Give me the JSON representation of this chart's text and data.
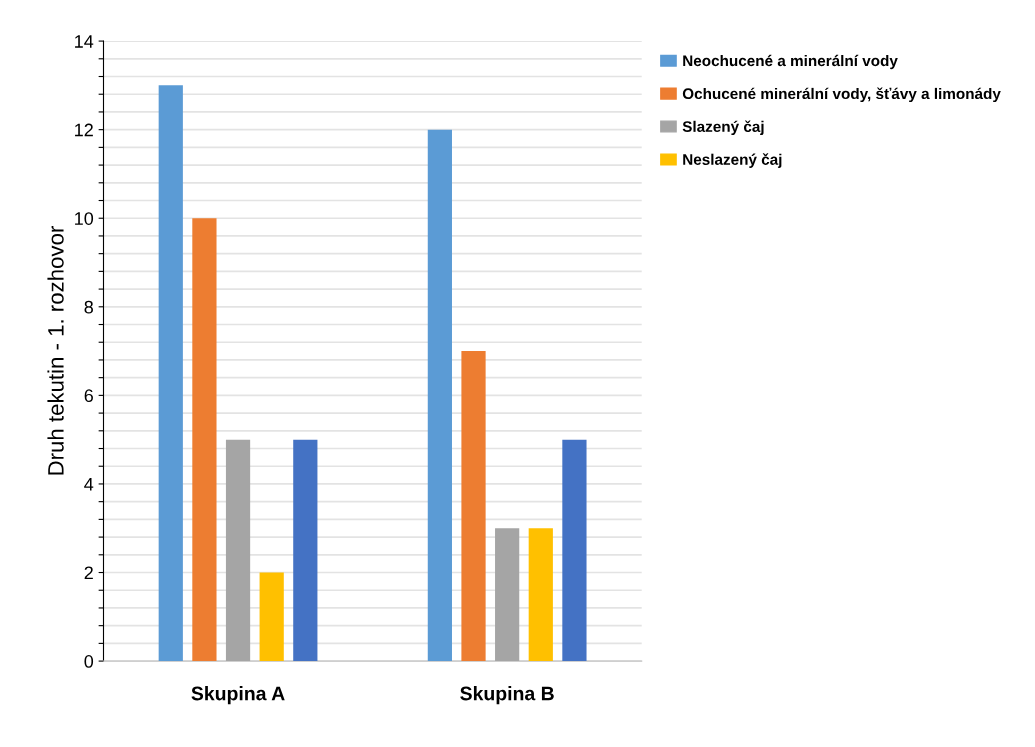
{
  "chart_data": {
    "type": "bar",
    "ylabel": "Druh tekutin - 1. rozhovor",
    "categories": [
      "Skupina A",
      "Skupina B"
    ],
    "series": [
      {
        "name": "Neochucené a minerální vody",
        "color": "#5b9bd5",
        "values": [
          13,
          12
        ]
      },
      {
        "name": "Ochucené minerální vody, šťávy a limonády",
        "color": "#ed7d31",
        "values": [
          10,
          7
        ]
      },
      {
        "name": "Slazený čaj",
        "color": "#a5a5a5",
        "values": [
          5,
          3
        ]
      },
      {
        "name": "Neslazený čaj",
        "color": "#ffc000",
        "values": [
          2,
          3
        ]
      },
      {
        "color": "#4472c4",
        "values": [
          5,
          5
        ]
      }
    ],
    "ylim": [
      0,
      14
    ],
    "yticks": [
      0,
      {
        "value": 0.4,
        "label": null
      },
      {
        "value": 0.8,
        "label": null
      },
      {
        "value": 1.2,
        "label": null
      },
      {
        "value": 1.6,
        "label": null
      },
      2,
      {
        "value": 2.4,
        "label": null
      },
      {
        "value": 2.8,
        "label": null
      },
      {
        "value": 3.2,
        "label": null
      },
      {
        "value": 3.6,
        "label": null
      },
      4,
      {
        "value": 4.4,
        "label": null
      },
      {
        "value": 4.8,
        "label": null
      },
      {
        "value": 5.2,
        "label": null
      },
      {
        "value": 5.6,
        "label": null
      },
      6,
      {
        "value": 6.4,
        "label": null
      },
      {
        "value": 6.8,
        "label": null
      },
      {
        "value": 7.2,
        "label": null
      },
      {
        "value": 7.6,
        "label": null
      },
      8,
      {
        "value": 8.4,
        "label": null
      },
      {
        "value": 8.8,
        "label": null
      },
      {
        "value": 9.2,
        "label": null
      },
      {
        "value": 9.6,
        "label": null
      },
      10,
      {
        "value": 10.4,
        "label": null
      },
      {
        "value": 10.8,
        "label": null
      },
      {
        "value": 11.2,
        "label": null
      },
      {
        "value": 11.6,
        "label": null
      },
      12,
      {
        "value": 12.4,
        "label": null
      },
      {
        "value": 12.8,
        "label": null
      },
      {
        "value": 13.2,
        "label": null
      },
      {
        "value": 13.6,
        "label": null
      },
      14
    ],
    "grid": "y",
    "legend": "right"
  }
}
